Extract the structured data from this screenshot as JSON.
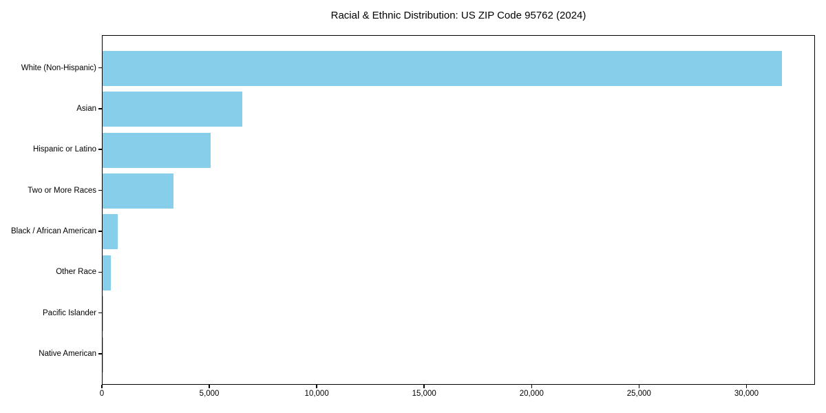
{
  "chart_data": {
    "type": "bar",
    "orientation": "horizontal",
    "title": "Racial & Ethnic Distribution: US ZIP Code 95762 (2024)",
    "categories": [
      "White (Non-Hispanic)",
      "Asian",
      "Hispanic or Latino",
      "Two or More Races",
      "Black / African American",
      "Other Race",
      "Pacific Islander",
      "Native American"
    ],
    "values": [
      31670,
      6500,
      5050,
      3310,
      710,
      370,
      20,
      10
    ],
    "xlabel": "",
    "ylabel": "",
    "xlim": [
      0,
      33190
    ],
    "x_ticks": [
      0,
      5000,
      10000,
      15000,
      20000,
      25000,
      30000
    ],
    "x_tick_labels": [
      "0",
      "5,000",
      "10,000",
      "15,000",
      "20,000",
      "25,000",
      "30,000"
    ],
    "bar_color": "#87CEEB",
    "background_color": "#FFFFFF",
    "spine_color": "#000000",
    "text_color": "#000000",
    "grid": false,
    "legend_position": "none"
  }
}
